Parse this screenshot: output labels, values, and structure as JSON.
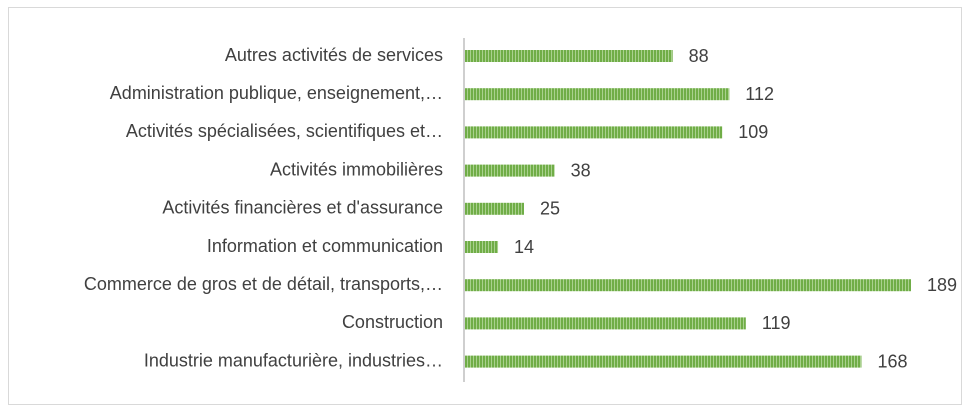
{
  "chart_data": {
    "type": "barh",
    "categories": [
      "Autres activités de services",
      "Administration publique, enseignement,…",
      "Activités spécialisées, scientifiques et…",
      "Activités immobilières",
      "Activités financières et d'assurance",
      "Information et communication",
      "Commerce de gros et de détail, transports,…",
      "Construction",
      "Industrie manufacturière, industries…"
    ],
    "values": [
      88,
      112,
      109,
      38,
      25,
      14,
      189,
      119,
      168
    ],
    "color": "#70ad47"
  }
}
